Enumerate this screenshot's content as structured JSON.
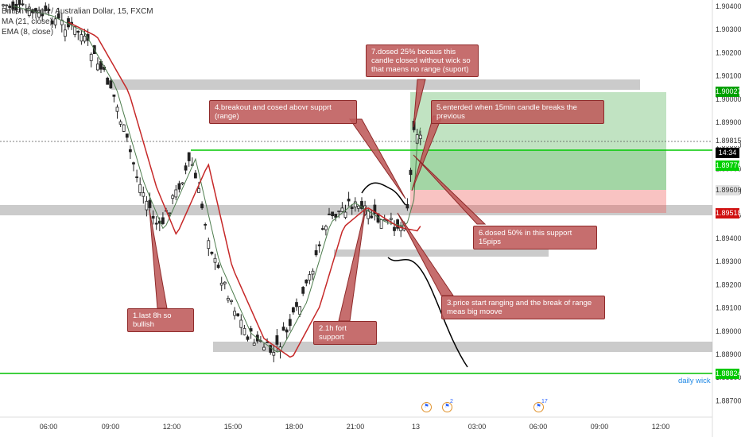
{
  "legend": {
    "symbol": "British Pound / Australian Dollar, 15, FXCM",
    "ma": "MA (21, close)",
    "ema": "EMA (8, close)"
  },
  "price_axis": {
    "labels": [
      "1.90400",
      "1.90300",
      "1.90200",
      "1.90100",
      "1.90000",
      "1.89900",
      "1.89800",
      "1.89700",
      "1.89600",
      "1.89500",
      "1.89400",
      "1.89300",
      "1.89200",
      "1.89100",
      "1.89000",
      "1.88900",
      "1.88800",
      "1.88700"
    ],
    "badges": [
      {
        "text": "1.90027",
        "bg": "#00a000",
        "fg": "#ffffff"
      },
      {
        "text": "1.89815",
        "bg": "#ffffff",
        "fg": "#333333"
      },
      {
        "text": "14:34",
        "bg": "#000000",
        "fg": "#ffffff"
      },
      {
        "text": "1.89776",
        "bg": "#00d000",
        "fg": "#ffffff"
      },
      {
        "text": "1.89609",
        "bg": "#e0e0e0",
        "fg": "#333333"
      },
      {
        "text": "1.89518",
        "bg": "#d01010",
        "fg": "#ffffff"
      },
      {
        "text": "1.88824",
        "bg": "#00c800",
        "fg": "#ffffff"
      }
    ]
  },
  "time_axis": [
    "06:00",
    "09:00",
    "12:00",
    "15:00",
    "18:00",
    "21:00",
    "13",
    "03:00",
    "06:00",
    "09:00",
    "12:00"
  ],
  "annotations": {
    "daily_wick": "daily wick",
    "c1": "1.last 8h so bullish",
    "c2": "2.1h fort support",
    "c3": "3.price start ranging and the break of range meas big moove",
    "c4": "4.breakout and cosed abovr supprt (range)",
    "c5": "5.enterded when 15min candle breaks the previous",
    "c6": "6.dosed 50% in this support 15pips",
    "c7": "7.dosed 25% becaus this candle closed without wick so that maens no range (suport)"
  },
  "events": [
    {
      "icon": "au-flag-icon",
      "count": ""
    },
    {
      "icon": "au-flag-icon",
      "count": "2"
    },
    {
      "icon": "us-flag-icon",
      "count": "17"
    }
  ],
  "colors": {
    "ma": "#c62828",
    "ema": "#4e7d4e",
    "candle": "#222222",
    "profit": "#2aa12a",
    "loss": "#e06060",
    "zone": "#9e9e9e",
    "wick_line": "#00c000"
  }
}
